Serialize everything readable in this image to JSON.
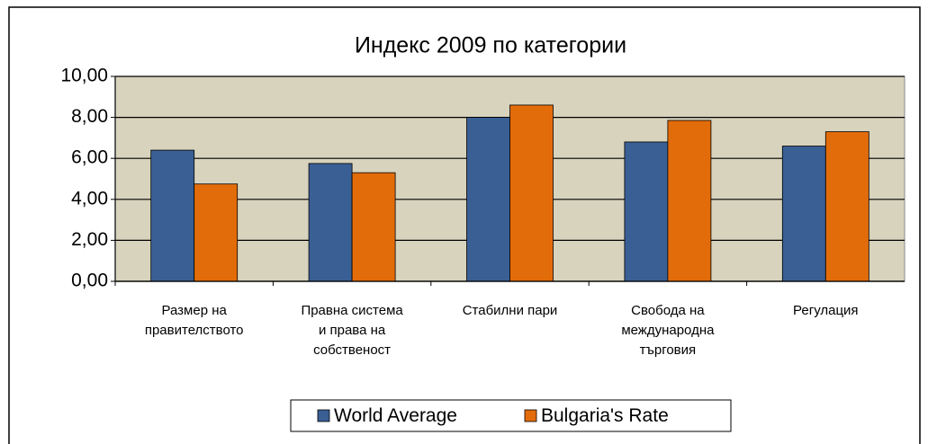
{
  "chart_data": {
    "type": "bar",
    "title": "Индекс 2009 по категории",
    "categories": [
      "Размер на\nправителството",
      "Правна система\nи права на\nсобственост",
      "Стабилни пари",
      "Свобода на\nмеждународна\nтърговия",
      "Регулация"
    ],
    "series": [
      {
        "name": "World Average",
        "color": "#3a5f94",
        "values": [
          6.4,
          5.75,
          8.0,
          6.8,
          6.6
        ]
      },
      {
        "name": "Bulgaria's Rate",
        "color": "#e36c0a",
        "values": [
          4.75,
          5.3,
          8.6,
          7.85,
          7.3
        ]
      }
    ],
    "ylim": [
      0,
      10
    ],
    "yticks": [
      {
        "value": 0,
        "label": "0,00"
      },
      {
        "value": 2,
        "label": "2,00"
      },
      {
        "value": 4,
        "label": "4,00"
      },
      {
        "value": 6,
        "label": "6,00"
      },
      {
        "value": 8,
        "label": "8,00"
      },
      {
        "value": 10,
        "label": "10,00"
      }
    ],
    "grid": true,
    "legend": "bottom"
  }
}
